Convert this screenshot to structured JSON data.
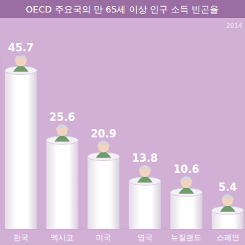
{
  "chart_data": {
    "type": "bar",
    "title": "OECD 주요국의 만 65세 이상 인구 소득 빈곤율",
    "subtitle": "2014",
    "categories": [
      "한국",
      "멕시코",
      "미국",
      "영국",
      "뉴질랜드",
      "스페인"
    ],
    "values": [
      45.7,
      25.6,
      20.9,
      13.8,
      10.6,
      5.4
    ],
    "color": "#ffffff",
    "ylim": [
      0,
      50
    ],
    "data_labels": true,
    "tick_labels": "x",
    "grid": false
  }
}
